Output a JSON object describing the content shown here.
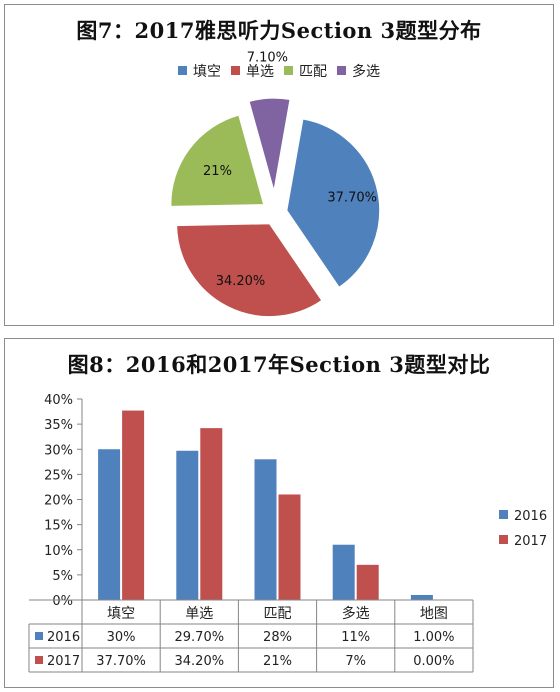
{
  "chart_data": [
    {
      "type": "pie",
      "title": "图7：2017雅思听力Section 3题型分布",
      "labels": [
        "填空",
        "单选",
        "匹配",
        "多选"
      ],
      "values": [
        37.7,
        34.2,
        21.0,
        7.1
      ],
      "data_labels": [
        "37.70%",
        "34.20%",
        "21%",
        "7.10%"
      ],
      "colors": [
        "#4f81bd",
        "#c0504d",
        "#9bbb59",
        "#8064a2"
      ],
      "exploded": true,
      "legend_position": "top"
    },
    {
      "type": "bar",
      "title": "图8：2016和2017年Section 3题型对比",
      "categories": [
        "填空",
        "单选",
        "匹配",
        "多选",
        "地图"
      ],
      "series": [
        {
          "name": "2016",
          "values": [
            30,
            29.7,
            28,
            11,
            1.0
          ],
          "labels": [
            "30%",
            "29.70%",
            "28%",
            "11%",
            "1.00%"
          ],
          "color": "#4f81bd"
        },
        {
          "name": "2017",
          "values": [
            37.7,
            34.2,
            21,
            7,
            0.0
          ],
          "labels": [
            "37.70%",
            "34.20%",
            "21%",
            "7%",
            "0.00%"
          ],
          "color": "#c0504d"
        }
      ],
      "ylim": [
        0,
        40
      ],
      "yticks": [
        "0%",
        "5%",
        "10%",
        "15%",
        "20%",
        "25%",
        "30%",
        "35%",
        "40%"
      ],
      "grid": false,
      "legend_position": "right",
      "data_table": true
    }
  ]
}
